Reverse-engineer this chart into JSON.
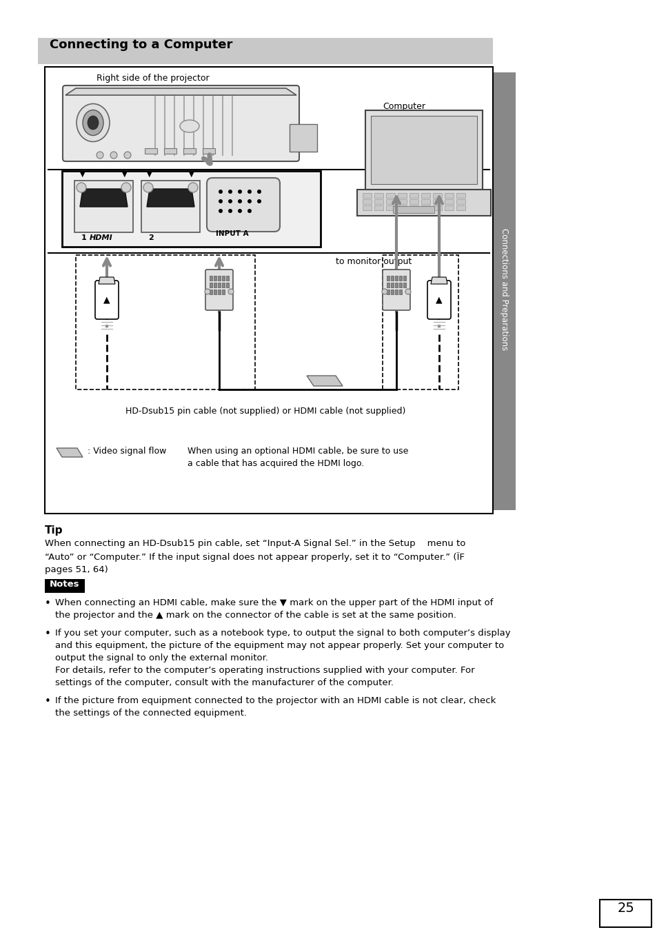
{
  "title": "Connecting to a Computer",
  "title_bg": "#c8c8c8",
  "page_bg": "#ffffff",
  "page_number": "25",
  "sidebar_text": "Connections and Preparations",
  "sidebar_bg": "#888888",
  "tip_title": "Tip",
  "tip_body_line1": "When connecting an HD-Dsub15 pin cable, set “Input-A Signal Sel.” in the Setup    menu to",
  "tip_body_line2": "“Auto” or “Computer.” If the input signal does not appear properly, set it to “Computer.” (ÏF",
  "tip_body_line3": "pages 51, 64)",
  "notes_title": "Notes",
  "note1_line1": "When connecting an HDMI cable, make sure the ▼ mark on the upper part of the HDMI input of",
  "note1_line2": "the projector and the ▲ mark on the connector of the cable is set at the same position.",
  "note2_line1": "If you set your computer, such as a notebook type, to output the signal to both computer’s display",
  "note2_line2": "and this equipment, the picture of the equipment may not appear properly. Set your computer to",
  "note2_line3": "output the signal to only the external monitor.",
  "note2_line4": "For details, refer to the computer’s operating instructions supplied with your computer. For",
  "note2_line5": "settings of the computer, consult with the manufacturer of the computer.",
  "note3_line1": "If the picture from equipment connected to the projector with an HDMI cable is not clear, check",
  "note3_line2": "the settings of the connected equipment.",
  "diag_proj_label": "Right side of the projector",
  "diag_comp_label": "Computer",
  "diag_monitor_label": "to monitor output",
  "diag_cable_label": "HD-Dsub15 pin cable (not supplied) or HDMI cable (not supplied)",
  "diag_flow_label": ": Video signal flow",
  "diag_hdmi_note1": "When using an optional HDMI cable, be sure to use",
  "diag_hdmi_note2": "a cable that has acquired the HDMI logo.",
  "diag_input_a": "INPUT A",
  "diag_hdmi_1": "1",
  "diag_hdmi_2": "2"
}
